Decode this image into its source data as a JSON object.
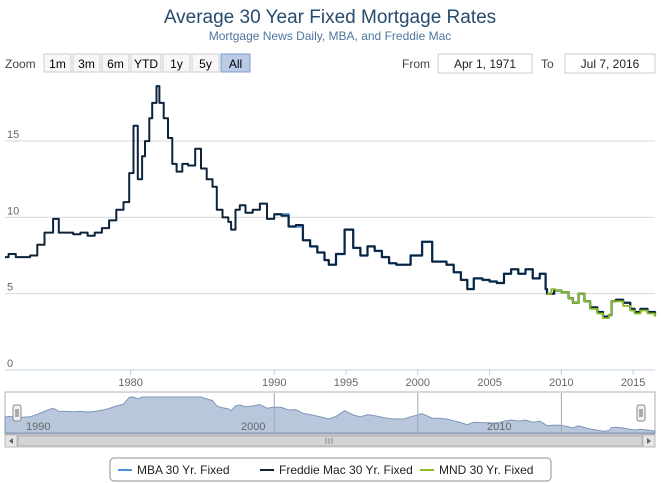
{
  "header": {
    "title": "Average 30 Year Fixed Mortgage Rates",
    "subtitle": "Mortgage News Daily, MBA, and Freddie Mac"
  },
  "range_selector": {
    "zoom_label": "Zoom",
    "buttons": [
      "1m",
      "3m",
      "6m",
      "YTD",
      "1y",
      "5y",
      "All"
    ],
    "active_button": "All",
    "from_label": "From",
    "from_value": "Apr 1, 1971",
    "to_label": "To",
    "to_value": "Jul 7, 2016"
  },
  "navigator": {
    "labels": [
      "1990",
      "2000",
      "2010"
    ]
  },
  "colors": {
    "mba": "#4a90d9",
    "freddie": "#0d233a",
    "mnd": "#8bbc21",
    "navigator_fill": "#b9c7dd",
    "navigator_line": "#7f96b8",
    "grid": "#d8d8d8"
  },
  "chart_data": {
    "type": "line",
    "title": "Average 30 Year Fixed Mortgage Rates",
    "subtitle": "Mortgage News Daily, MBA, and Freddie Mac",
    "xlim": [
      1971.25,
      2016.52
    ],
    "ylim": [
      0,
      19
    ],
    "x_ticks": [
      1980,
      1990,
      1995,
      2000,
      2005,
      2010,
      2015
    ],
    "y_ticks": [
      0,
      5,
      10,
      15
    ],
    "grid": true,
    "legend_position": "bottom-center",
    "series": [
      {
        "name": "MBA 30 Yr. Fixed",
        "color": "#4a90d9",
        "x": [
          1990.0,
          1991.0,
          1992.0,
          1992.5,
          1993.0,
          1993.5,
          1993.8,
          1994.3,
          1994.9,
          1995.5,
          1996.0,
          1996.5,
          1997.0,
          1997.5,
          1998.0,
          1998.5,
          1999.0,
          1999.5,
          2000.3,
          2001.0,
          2001.5,
          2002.0,
          2002.5,
          2003.0,
          2003.45,
          2003.9,
          2004.5,
          2005.0,
          2005.5,
          2006.0,
          2006.5,
          2007.0,
          2007.5,
          2008.0,
          2008.5,
          2008.9,
          2009.0,
          2009.5,
          2010.0,
          2010.5,
          2010.8,
          2011.2,
          2011.6,
          2012.0,
          2012.5,
          2012.9,
          2013.3,
          2013.5,
          2013.8,
          2014.3,
          2014.8,
          2015.1,
          2015.5,
          2016.0,
          2016.52
        ],
        "y": [
          10.2,
          9.4,
          8.5,
          8.1,
          7.7,
          7.2,
          6.9,
          7.6,
          9.2,
          8.0,
          7.5,
          8.1,
          7.8,
          7.4,
          7.0,
          6.9,
          6.9,
          7.5,
          8.4,
          7.1,
          7.1,
          6.9,
          6.4,
          5.9,
          5.3,
          6.0,
          5.9,
          5.8,
          5.7,
          6.3,
          6.6,
          6.3,
          6.6,
          6.0,
          6.3,
          5.3,
          5.0,
          5.2,
          5.1,
          4.7,
          4.4,
          5.0,
          4.5,
          4.1,
          3.8,
          3.5,
          3.6,
          4.5,
          4.6,
          4.4,
          4.0,
          3.8,
          4.0,
          3.8,
          3.55
        ]
      },
      {
        "name": "Freddie Mac 30 Yr. Fixed",
        "color": "#0d233a",
        "x": [
          1971.25,
          1971.5,
          1972.0,
          1972.5,
          1973.0,
          1973.5,
          1974.0,
          1974.6,
          1975.0,
          1975.5,
          1976.0,
          1976.5,
          1977.0,
          1977.5,
          1978.0,
          1978.5,
          1979.0,
          1979.5,
          1979.9,
          1980.2,
          1980.5,
          1980.8,
          1981.0,
          1981.3,
          1981.5,
          1981.8,
          1982.0,
          1982.3,
          1982.6,
          1982.9,
          1983.2,
          1983.6,
          1984.0,
          1984.5,
          1984.9,
          1985.3,
          1985.7,
          1986.0,
          1986.4,
          1986.8,
          1987.0,
          1987.3,
          1987.6,
          1988.0,
          1988.5,
          1989.0,
          1989.5,
          1990.0,
          1990.5,
          1991.0,
          1991.5,
          1992.0,
          1992.5,
          1993.0,
          1993.5,
          1993.8,
          1994.3,
          1994.9,
          1995.5,
          1996.0,
          1996.5,
          1997.0,
          1997.5,
          1998.0,
          1998.5,
          1999.0,
          1999.5,
          2000.3,
          2001.0,
          2001.5,
          2002.0,
          2002.5,
          2003.0,
          2003.45,
          2003.9,
          2004.5,
          2005.0,
          2005.5,
          2006.0,
          2006.5,
          2007.0,
          2007.5,
          2008.0,
          2008.5,
          2008.9,
          2009.0,
          2009.5,
          2010.0,
          2010.5,
          2010.8,
          2011.2,
          2011.6,
          2012.0,
          2012.5,
          2012.9,
          2013.3,
          2013.5,
          2013.8,
          2014.3,
          2014.8,
          2015.1,
          2015.5,
          2016.0,
          2016.52
        ],
        "y": [
          7.4,
          7.6,
          7.4,
          7.4,
          7.5,
          8.2,
          9.0,
          9.9,
          9.0,
          9.0,
          8.9,
          9.0,
          8.8,
          9.0,
          9.3,
          9.8,
          10.5,
          11.0,
          12.9,
          16.0,
          12.5,
          14.0,
          15.0,
          16.5,
          17.5,
          18.6,
          17.5,
          16.5,
          15.2,
          13.5,
          13.0,
          13.5,
          13.4,
          14.5,
          13.2,
          12.5,
          12.0,
          10.5,
          10.0,
          9.7,
          9.2,
          10.5,
          10.8,
          10.3,
          10.5,
          10.9,
          9.9,
          10.2,
          10.1,
          9.4,
          9.5,
          8.5,
          8.1,
          7.7,
          7.2,
          6.9,
          7.6,
          9.2,
          8.0,
          7.5,
          8.1,
          7.8,
          7.4,
          7.0,
          6.9,
          6.9,
          7.5,
          8.4,
          7.1,
          7.1,
          6.9,
          6.4,
          5.9,
          5.3,
          6.0,
          5.9,
          5.8,
          5.7,
          6.3,
          6.6,
          6.3,
          6.6,
          6.0,
          6.3,
          5.3,
          5.0,
          5.2,
          5.1,
          4.7,
          4.4,
          5.0,
          4.5,
          4.1,
          3.8,
          3.5,
          3.6,
          4.5,
          4.6,
          4.4,
          4.0,
          3.8,
          4.0,
          3.8,
          3.55
        ]
      },
      {
        "name": "MND 30 Yr. Fixed",
        "color": "#8bbc21",
        "x": [
          2009.0,
          2009.3,
          2009.6,
          2010.0,
          2010.5,
          2010.8,
          2011.2,
          2011.6,
          2012.0,
          2012.5,
          2012.9,
          2013.3,
          2013.5,
          2013.8,
          2014.3,
          2014.8,
          2015.1,
          2015.5,
          2016.0,
          2016.52
        ],
        "y": [
          5.0,
          5.3,
          5.2,
          5.1,
          4.7,
          4.4,
          5.0,
          4.5,
          4.0,
          3.7,
          3.4,
          3.6,
          4.5,
          4.5,
          4.2,
          3.9,
          3.7,
          3.9,
          3.7,
          3.5
        ]
      }
    ]
  }
}
